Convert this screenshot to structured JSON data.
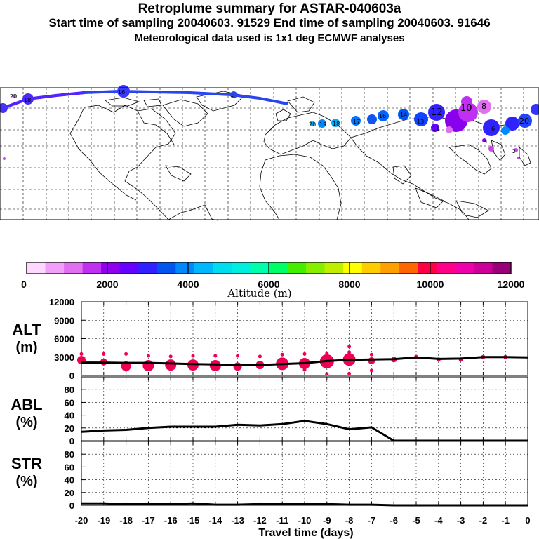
{
  "header": {
    "title": "Retroplume summary for ASTAR-040603a",
    "subtitle": "Start time of sampling 20040603. 91529     End time of sampling 20040603. 91646",
    "met_note": "Meteorological data used is 1x1 deg ECMWF analyses"
  },
  "colors": {
    "line": "#000000",
    "cluster": "#ee0055",
    "grid": "#000000",
    "track_blue": "#2266ee",
    "track_purple": "#7700ff"
  },
  "colorbar": {
    "ticks": [
      "0",
      "2000",
      "4000",
      "6000",
      "8000",
      "10000",
      "12000"
    ],
    "label": "Altitude (m)",
    "colors": [
      "#ffd8ff",
      "#f0a0f8",
      "#e070f0",
      "#c030f0",
      "#9000ee",
      "#6600ff",
      "#2f22ff",
      "#0055ee",
      "#0088ff",
      "#00b8ff",
      "#00ddee",
      "#00eedd",
      "#00ffaa",
      "#00ff66",
      "#44ee00",
      "#88ee00",
      "#c0ee00",
      "#ffff00",
      "#ffcc00",
      "#ffa000",
      "#ff6600",
      "#ff0044",
      "#ff0088",
      "#ee00aa",
      "#cc0099",
      "#990077"
    ]
  },
  "map": {
    "track_labels": [
      "20",
      "18",
      "16",
      "14",
      "12",
      "10",
      "8",
      "6",
      "4",
      "2",
      "1",
      "13",
      "11",
      "17",
      "19"
    ]
  },
  "chart_data": [
    {
      "type": "line",
      "name": "ALT",
      "ylabel_line1": "ALT",
      "ylabel_line2": "(m)",
      "ylim": [
        0,
        12000
      ],
      "yticks": [
        "12000",
        "9000",
        "6000",
        "3000",
        "0"
      ],
      "ytick_values": [
        12000,
        9000,
        6000,
        3000,
        0
      ],
      "x": [
        -20,
        -19,
        -18,
        -17,
        -16,
        -15,
        -14,
        -13,
        -12,
        -11,
        -10,
        -9,
        -8,
        -7,
        -6,
        -5,
        -4,
        -3,
        -2,
        -1,
        0
      ],
      "values": [
        2100,
        2100,
        2050,
        2050,
        1950,
        1850,
        1800,
        1700,
        1700,
        1850,
        2000,
        2350,
        2550,
        2600,
        2650,
        2950,
        2700,
        2750,
        3000,
        3000,
        2950
      ],
      "cluster_x": [
        -20,
        -19,
        -18,
        -17,
        -16,
        -15,
        -14,
        -13,
        -12,
        -11,
        -10,
        -9,
        -8,
        -7,
        -6,
        -5,
        -4,
        -3,
        -2,
        -1
      ],
      "cluster_y": [
        2500,
        2200,
        1500,
        1600,
        1700,
        1700,
        1600,
        1450,
        1700,
        1900,
        1950,
        2300,
        2600,
        2400,
        2600,
        3000,
        2600,
        2600,
        3000,
        3000
      ],
      "cluster_r": [
        6,
        5,
        7,
        8,
        8,
        8,
        8,
        6,
        6,
        9,
        8,
        10,
        9,
        5,
        4,
        3,
        3,
        3,
        3,
        3
      ],
      "outlier_x": [
        -20,
        -19,
        -18,
        -18,
        -17,
        -16,
        -15,
        -14,
        -13,
        -12,
        -11,
        -10,
        -10,
        -9,
        -9,
        -8,
        -8,
        -8,
        -7,
        -7
      ],
      "outlier_y": [
        3500,
        3500,
        3500,
        900,
        3200,
        3100,
        3200,
        3200,
        3200,
        3100,
        3400,
        3500,
        900,
        3600,
        200,
        4700,
        3800,
        300,
        3400,
        800
      ]
    },
    {
      "type": "line",
      "name": "ABL",
      "ylabel_line1": "ABL",
      "ylabel_line2": "(%)",
      "ylim": [
        0,
        100
      ],
      "yticks": [
        "80",
        "60",
        "40",
        "20",
        "0"
      ],
      "ytick_values": [
        80,
        60,
        40,
        20,
        0
      ],
      "x": [
        -20,
        -19,
        -18,
        -17,
        -16,
        -15,
        -14,
        -13,
        -12,
        -11,
        -10,
        -9,
        -8,
        -7,
        -6,
        -5,
        -4,
        -3,
        -2,
        -1,
        0
      ],
      "values": [
        14,
        16,
        17,
        20,
        22,
        22,
        22,
        25,
        24,
        26,
        31,
        26,
        18,
        21,
        0,
        0,
        0,
        0,
        0,
        0,
        0
      ]
    },
    {
      "type": "line",
      "name": "STR",
      "ylabel_line1": "STR",
      "ylabel_line2": "(%)",
      "ylim": [
        0,
        100
      ],
      "yticks": [
        "80",
        "60",
        "40",
        "20",
        "0"
      ],
      "ytick_values": [
        80,
        60,
        40,
        20,
        0
      ],
      "x": [
        -20,
        -19,
        -18,
        -17,
        -16,
        -15,
        -14,
        -13,
        -12,
        -11,
        -10,
        -9,
        -8,
        -7,
        -6,
        -5,
        -4,
        -3,
        -2,
        -1,
        0
      ],
      "values": [
        3,
        3,
        2,
        2,
        2,
        3,
        1,
        1,
        2,
        2,
        2,
        2,
        1,
        1,
        0,
        0,
        0,
        0,
        0,
        0,
        0
      ]
    }
  ],
  "xaxis": {
    "ticks": [
      "-20",
      "-19",
      "-18",
      "-17",
      "-16",
      "-15",
      "-14",
      "-13",
      "-12",
      "-11",
      "-10",
      "-9",
      "-8",
      "-7",
      "-6",
      "-5",
      "-4",
      "-3",
      "-2",
      "-1",
      "0"
    ],
    "label": "Travel time (days)"
  }
}
